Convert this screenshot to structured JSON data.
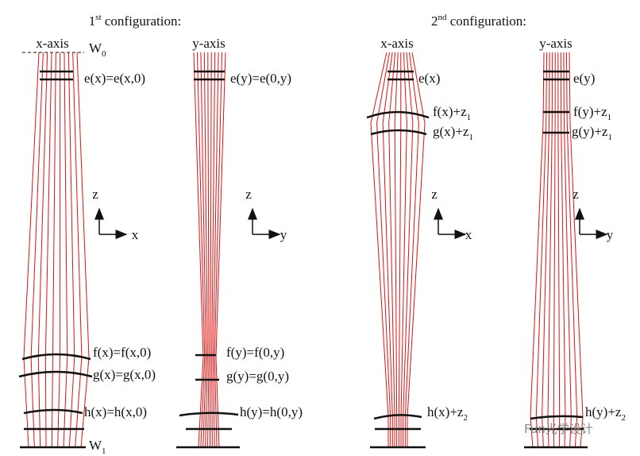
{
  "configurations": [
    {
      "number": "1",
      "suffix": "st",
      "text": " configuration:"
    },
    {
      "number": "2",
      "suffix": "nd",
      "text": " configuration:"
    }
  ],
  "panels": [
    {
      "header": "x-axis",
      "labels": [
        {
          "text": "W",
          "sub": "0"
        },
        {
          "text": "e(x)=e(x,0)"
        },
        {
          "text": "f(x)=f(x,0)"
        },
        {
          "text": "g(x)=g(x,0)"
        },
        {
          "text": "h(x)=h(x,0)"
        },
        {
          "text": "W",
          "sub": "1"
        }
      ],
      "axes": {
        "vertical": "z",
        "horizontal": "x"
      }
    },
    {
      "header": "y-axis",
      "labels": [
        {
          "text": "e(y)=e(0,y)"
        },
        {
          "text": "f(y)=f(0,y)"
        },
        {
          "text": "g(y)=g(0,y)"
        },
        {
          "text": "h(y)=h(0,y)"
        }
      ],
      "axes": {
        "vertical": "z",
        "horizontal": "y"
      }
    },
    {
      "header": "x-axis",
      "labels": [
        {
          "text": "e(x)"
        },
        {
          "text": "f(x)+z",
          "sub": "1"
        },
        {
          "text": "g(x)+z",
          "sub": "1"
        },
        {
          "text": "h(x)+z",
          "sub": "2"
        }
      ],
      "axes": {
        "vertical": "z",
        "horizontal": "x"
      }
    },
    {
      "header": "y-axis",
      "labels": [
        {
          "text": "e(y)"
        },
        {
          "text": "f(y)+z",
          "sub": "1"
        },
        {
          "text": "g(y)+z",
          "sub": "1"
        },
        {
          "text": "h(y)+z",
          "sub": "2"
        }
      ],
      "axes": {
        "vertical": "z",
        "horizontal": "y"
      }
    }
  ],
  "watermark": "Fun光学设计"
}
